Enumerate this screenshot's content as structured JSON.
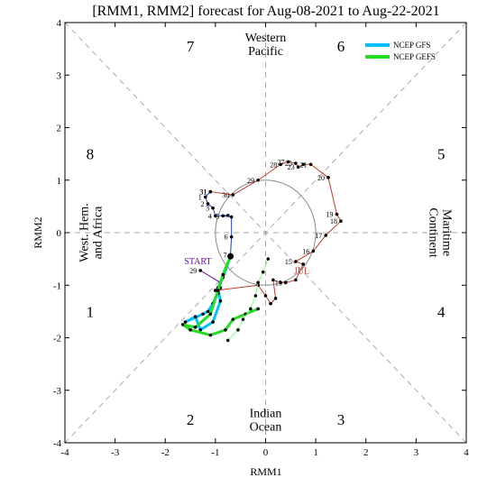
{
  "chart_data": {
    "type": "line",
    "title": "[RMM1, RMM2] forecast for Aug-08-2021 to Aug-22-2021",
    "xlabel": "RMM1",
    "ylabel": "RMM2",
    "xlim": [
      -4,
      4
    ],
    "ylim": [
      -4,
      4
    ],
    "x_ticks": [
      "-4",
      "-3",
      "-2",
      "-1",
      "0",
      "1",
      "2",
      "3",
      "4"
    ],
    "y_ticks": [
      "-4",
      "-3",
      "-2",
      "-1",
      "0",
      "1",
      "2",
      "3",
      "4"
    ],
    "grid": false,
    "legend_position": "top-right",
    "phase_labels": [
      {
        "text": "1",
        "x": -3.5,
        "y": -1.5
      },
      {
        "text": "2",
        "x": -1.5,
        "y": -3.55
      },
      {
        "text": "3",
        "x": 1.5,
        "y": -3.55
      },
      {
        "text": "4",
        "x": 3.5,
        "y": -1.5
      },
      {
        "text": "5",
        "x": 3.5,
        "y": 1.5
      },
      {
        "text": "6",
        "x": 1.5,
        "y": 3.55
      },
      {
        "text": "7",
        "x": -1.5,
        "y": 3.55
      },
      {
        "text": "8",
        "x": -3.5,
        "y": 1.5
      }
    ],
    "region_labels": [
      {
        "lines": [
          "Western",
          "Pacific"
        ],
        "x": 0,
        "y": 3.6,
        "rotate": 0
      },
      {
        "lines": [
          "Indian",
          "Ocean"
        ],
        "x": 0,
        "y": -3.55,
        "rotate": 0
      },
      {
        "lines": [
          "West. Hem.",
          "and Africa"
        ],
        "x": -3.5,
        "y": 0,
        "rotate": -90
      },
      {
        "lines": [
          "Maritime",
          "Continent"
        ],
        "x": 3.5,
        "y": 0,
        "rotate": 90
      }
    ],
    "series": [
      {
        "name": "",
        "color": "#c0392b",
        "points": [
          {
            "label": "",
            "x": -1.0,
            "y": -1.1
          },
          {
            "label": "",
            "x": -0.15,
            "y": -1.0
          },
          {
            "label": "",
            "x": 0.0,
            "y": -1.2
          },
          {
            "label": "",
            "x": 0.1,
            "y": -1.35
          },
          {
            "label": "",
            "x": 0.2,
            "y": -1.25
          },
          {
            "label": "",
            "x": 0.15,
            "y": -0.9
          },
          {
            "label": "",
            "x": 0.3,
            "y": -0.95
          },
          {
            "label": "13",
            "x": 0.4,
            "y": -0.95
          },
          {
            "label": "",
            "x": 0.6,
            "y": -0.9
          },
          {
            "label": "JUL",
            "x": 0.75,
            "y": -0.6
          },
          {
            "label": "15",
            "x": 0.6,
            "y": -0.55
          },
          {
            "label": "16",
            "x": 0.95,
            "y": -0.35
          },
          {
            "label": "17",
            "x": 1.2,
            "y": -0.05
          },
          {
            "label": "18",
            "x": 1.5,
            "y": 0.22
          },
          {
            "label": "19",
            "x": 1.42,
            "y": 0.35
          },
          {
            "label": "20",
            "x": 1.25,
            "y": 1.05
          },
          {
            "label": "21",
            "x": 0.9,
            "y": 1.3
          },
          {
            "label": "",
            "x": 0.75,
            "y": 1.3
          },
          {
            "label": "23",
            "x": 0.65,
            "y": 1.25
          },
          {
            "label": "25",
            "x": 0.6,
            "y": 1.32
          },
          {
            "label": "27",
            "x": 0.45,
            "y": 1.35
          },
          {
            "label": "28",
            "x": 0.3,
            "y": 1.3
          },
          {
            "label": "29",
            "x": -0.15,
            "y": 1.0
          },
          {
            "label": "30",
            "x": -0.65,
            "y": 0.72
          },
          {
            "label": "31",
            "x": -1.1,
            "y": 0.78
          }
        ]
      },
      {
        "name": "",
        "color": "#1f3fbf",
        "points": [
          {
            "label": "31",
            "x": -1.1,
            "y": 0.78
          },
          {
            "label": "1",
            "x": -1.2,
            "y": 0.68
          },
          {
            "label": "2",
            "x": -1.15,
            "y": 0.55
          },
          {
            "label": "3",
            "x": -1.05,
            "y": 0.47
          },
          {
            "label": "4",
            "x": -1.0,
            "y": 0.32
          },
          {
            "label": "",
            "x": -0.75,
            "y": 0.33
          },
          {
            "label": "5",
            "x": -0.85,
            "y": 0.32
          },
          {
            "label": "",
            "x": -0.68,
            "y": 0.3
          },
          {
            "label": "6",
            "x": -0.68,
            "y": -0.08
          },
          {
            "label": "7",
            "x": -0.7,
            "y": -0.42
          }
        ]
      },
      {
        "name": "",
        "color": "#6a0dad",
        "points": [
          {
            "label": "29",
            "x": -1.3,
            "y": -0.72
          },
          {
            "label": "",
            "x": -0.9,
            "y": -0.95
          },
          {
            "label": "",
            "x": -0.9,
            "y": -1.05
          },
          {
            "label": "",
            "x": -1.0,
            "y": -1.1
          }
        ]
      },
      {
        "name": "NCEP GFS",
        "color": "#00bfff",
        "points": [
          {
            "x": -0.7,
            "y": -0.45
          },
          {
            "x": -0.85,
            "y": -0.85
          },
          {
            "x": -0.95,
            "y": -1.05
          },
          {
            "x": -0.9,
            "y": -1.3
          },
          {
            "x": -1.05,
            "y": -1.7
          },
          {
            "x": -1.3,
            "y": -1.85
          },
          {
            "x": -1.4,
            "y": -1.6
          },
          {
            "x": -1.6,
            "y": -1.7
          },
          {
            "x": -1.25,
            "y": -1.55
          },
          {
            "x": -1.15,
            "y": -1.5
          },
          {
            "x": -1.05,
            "y": -1.35
          },
          {
            "x": -0.95,
            "y": -1.15
          }
        ]
      },
      {
        "name": "NCEP GEFS",
        "color": "#22dd22",
        "points": [
          {
            "x": -0.7,
            "y": -0.45
          },
          {
            "x": -0.85,
            "y": -0.8
          },
          {
            "x": -0.95,
            "y": -1.1
          },
          {
            "x": -1.1,
            "y": -1.55
          },
          {
            "x": -1.4,
            "y": -1.8
          },
          {
            "x": -1.65,
            "y": -1.75
          },
          {
            "x": -1.5,
            "y": -1.85
          },
          {
            "x": -1.1,
            "y": -1.95
          },
          {
            "x": -0.8,
            "y": -1.85
          },
          {
            "x": -0.65,
            "y": -1.65
          },
          {
            "x": -0.4,
            "y": -1.55
          },
          {
            "x": -0.15,
            "y": -1.45
          }
        ]
      },
      {
        "name": "",
        "color": "#7fff7f",
        "points": [
          {
            "x": -0.75,
            "y": -2.05
          },
          {
            "x": -0.55,
            "y": -1.85
          },
          {
            "x": -0.45,
            "y": -1.65
          },
          {
            "x": -0.3,
            "y": -1.45
          },
          {
            "x": -0.2,
            "y": -1.2
          },
          {
            "x": -0.15,
            "y": -0.95
          },
          {
            "x": -0.05,
            "y": -0.75
          },
          {
            "x": 0.05,
            "y": -0.5
          }
        ]
      }
    ],
    "annotations": [
      {
        "text": "START",
        "x": -1.35,
        "y": -0.6,
        "color": "#6a0dad"
      },
      {
        "text": "JUL",
        "x": 0.72,
        "y": -0.78,
        "color": "#c0392b"
      }
    ]
  }
}
